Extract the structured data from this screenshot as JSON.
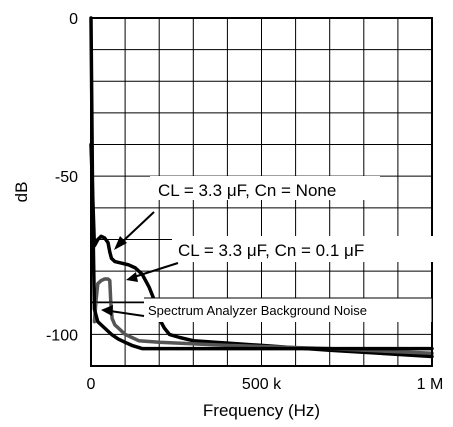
{
  "chart_data": {
    "type": "line",
    "title": "",
    "xlabel": "Frequency (Hz)",
    "ylabel": "dB",
    "xlim": [
      0,
      1000000
    ],
    "ylim": [
      -110,
      0
    ],
    "x_ticks": [
      {
        "value": 0,
        "label": "0"
      },
      {
        "value": 500000,
        "label": "500 k"
      },
      {
        "value": 1000000,
        "label": "1 M"
      }
    ],
    "y_ticks": [
      {
        "value": 0,
        "label": "0"
      },
      {
        "value": -50,
        "label": "-50"
      },
      {
        "value": -100,
        "label": "-100"
      }
    ],
    "grid": true,
    "x_grid_divisions": 10,
    "y_grid_divisions": 11,
    "series": [
      {
        "color": "#000000",
        "x": [
          0,
          10000,
          20000,
          30000,
          40000,
          50000,
          55000,
          60000,
          70000,
          90000,
          110000,
          130000,
          150000,
          170000,
          185000,
          195000,
          205000,
          215000,
          230000,
          260000,
          300000,
          500000,
          700000,
          1000000
        ],
        "y": [
          -40,
          -72,
          -70,
          -69,
          -69.5,
          -71,
          -74,
          -76,
          -77,
          -77.5,
          -78,
          -79,
          -81,
          -85,
          -89,
          -93,
          -96,
          -98,
          -100,
          -101,
          -102,
          -103.5,
          -105,
          -107
        ]
      },
      {
        "color": "#555555",
        "x": [
          10000,
          15000,
          20000,
          30000,
          40000,
          50000,
          55000,
          58000,
          62000,
          70000,
          80000,
          90000,
          100000,
          110000,
          120000,
          130000,
          140000,
          200000,
          400000,
          700000,
          1000000
        ],
        "y": [
          -96,
          -89,
          -84,
          -83,
          -82.5,
          -82.5,
          -83,
          -90,
          -95,
          -97,
          -98,
          -99,
          -100,
          -100.5,
          -101,
          -101.5,
          -102,
          -102.5,
          -103.5,
          -104.5,
          -106
        ]
      },
      {
        "color": "#000000",
        "x": [
          0,
          5000,
          10000,
          20000,
          40000,
          60000,
          80000,
          100000,
          120000,
          150000,
          400000,
          700000,
          1000000
        ],
        "y": [
          0,
          -60,
          -92,
          -96,
          -98,
          -100,
          -101.5,
          -102.5,
          -103.5,
          -104.5,
          -104.5,
          -104.5,
          -104.5
        ]
      }
    ],
    "annotations": [
      {
        "text": "CL = 3.3 μF, Cn = None",
        "target_series": 0
      },
      {
        "text": "CL = 3.3 μF, Cn = 0.1 μF",
        "target_series": 1
      },
      {
        "text": "Spectrum Analyzer Background Noise",
        "target_series": 2
      }
    ]
  }
}
